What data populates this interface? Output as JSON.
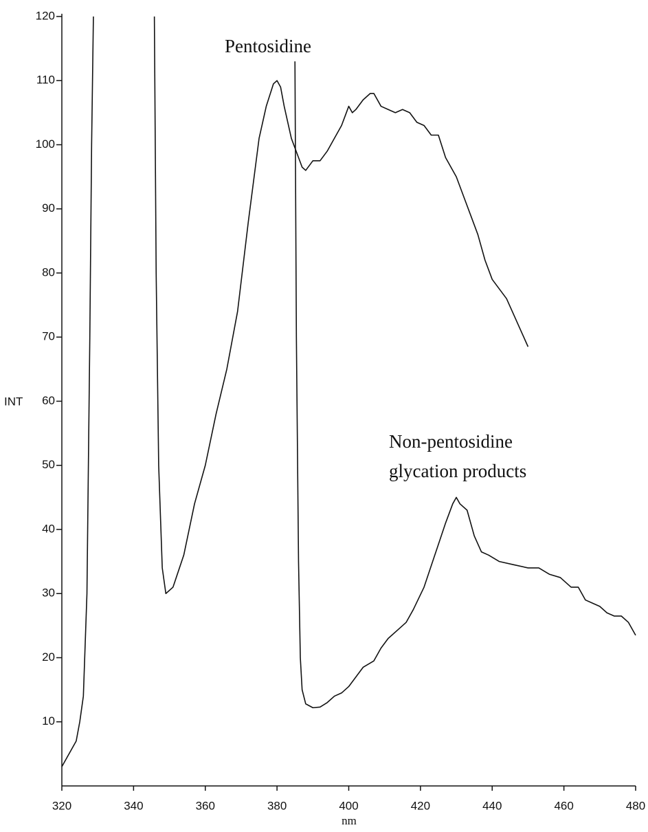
{
  "chart_data": {
    "type": "line",
    "x_label": "nm",
    "y_label": "INT",
    "annotations": [
      [
        "Pentosidine"
      ],
      [
        "Non-pentosidine",
        "glycation products"
      ]
    ],
    "xlim": [
      320,
      480
    ],
    "xticks": [
      320,
      340,
      360,
      380,
      400,
      420,
      440,
      460,
      480
    ],
    "ylim": [
      0,
      120
    ],
    "yticks": [
      10,
      20,
      30,
      40,
      50,
      60,
      70,
      80,
      90,
      100,
      110,
      120
    ],
    "series": [
      {
        "color": "#111111",
        "x": [
          320,
          322,
          324,
          325,
          326,
          327,
          327.8,
          328.3,
          328.8,
          337,
          345.8,
          346.3,
          347,
          348,
          349,
          351,
          354,
          357,
          360,
          363,
          366,
          369,
          372,
          375,
          377,
          379,
          380,
          381,
          382,
          384,
          386,
          387,
          388,
          390,
          392,
          394,
          396,
          398,
          399,
          400,
          401,
          402,
          404,
          406,
          407,
          409,
          411,
          413,
          415,
          417,
          419,
          421,
          423,
          425,
          427,
          430,
          432,
          434,
          436,
          438,
          440,
          442,
          444,
          446,
          448,
          450
        ],
        "values": [
          3,
          5,
          7,
          10,
          14,
          30,
          70,
          100,
          120,
          null,
          120,
          80,
          50,
          34,
          30,
          31,
          36,
          44,
          50,
          58,
          65,
          74,
          88,
          101,
          106,
          109.5,
          110,
          109,
          106,
          101,
          98,
          96.5,
          96,
          97.5,
          97.5,
          99,
          101,
          103,
          104.5,
          106,
          105,
          105.5,
          107,
          108,
          108,
          106,
          105.5,
          105,
          105.5,
          105,
          103.5,
          103,
          101.5,
          101.5,
          98,
          95,
          92,
          89,
          86,
          82,
          79,
          77.5,
          76,
          73.5,
          71,
          68.5
        ]
      },
      {
        "color": "#111111",
        "x": [
          385,
          385.4,
          386,
          386.5,
          387,
          388,
          390,
          392,
          394,
          396,
          398,
          400,
          402,
          404,
          407,
          409,
          411,
          414,
          416,
          418,
          421,
          424,
          427,
          429,
          430,
          431,
          433,
          435,
          437,
          439,
          442,
          446,
          450,
          453,
          456,
          459,
          462,
          464,
          466,
          468,
          470,
          472,
          474,
          476,
          478,
          480
        ],
        "values": [
          113,
          70,
          35,
          20,
          15,
          12.8,
          12.2,
          12.3,
          13,
          14,
          14.5,
          15.5,
          17,
          18.5,
          19.5,
          21.5,
          23,
          24.5,
          25.5,
          27.5,
          31,
          36,
          41,
          44,
          45,
          44,
          43,
          39,
          36.5,
          36,
          35,
          34.5,
          34,
          34,
          33,
          32.5,
          31,
          31,
          29,
          28.5,
          28,
          27,
          26.5,
          26.5,
          25.5,
          23.5
        ]
      }
    ]
  }
}
